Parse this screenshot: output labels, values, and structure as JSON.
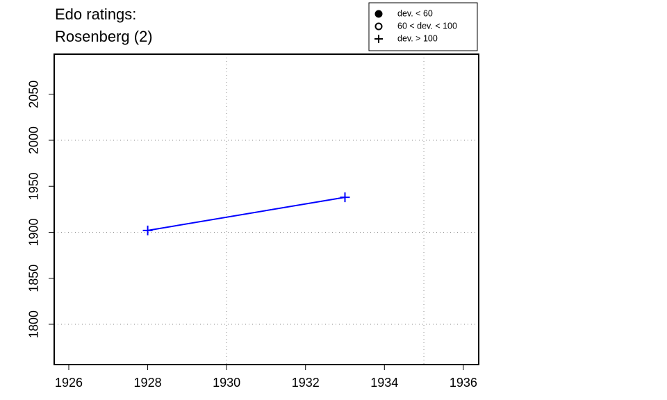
{
  "chart_data": {
    "type": "line",
    "title": "Edo ratings:",
    "subtitle": "Rosenberg (2)",
    "x": [
      1928,
      1933
    ],
    "series": [
      {
        "color": "#0000ff",
        "values": [
          1902,
          1938
        ],
        "markers": [
          "plus",
          "plus"
        ]
      }
    ],
    "xlim": [
      1925.63,
      1936.39
    ],
    "ylim": [
      1756.2,
      2093.6
    ],
    "xticks": [
      1926,
      1928,
      1930,
      1932,
      1934,
      1936
    ],
    "yticks": [
      1800,
      1850,
      1900,
      1950,
      2000,
      2050
    ],
    "xgrid": [
      1930,
      1935
    ],
    "ygrid": [
      1800,
      1900,
      2000
    ],
    "legend": [
      {
        "label": "dev. < 60",
        "symbol": "filled-circle"
      },
      {
        "label": "60 < dev. < 100",
        "symbol": "open-circle"
      },
      {
        "label": "dev. > 100",
        "symbol": "plus"
      }
    ]
  }
}
